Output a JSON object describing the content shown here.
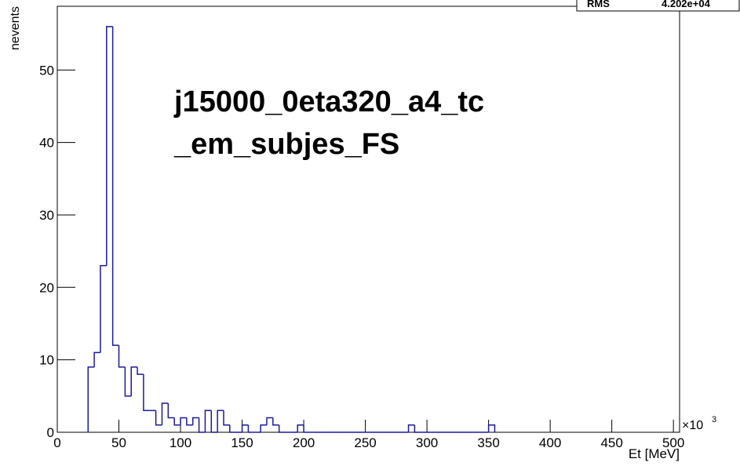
{
  "chart_data": {
    "type": "histogram",
    "annotations": [
      "j15000_0eta320_a4_tc",
      "_em_subjes_FS"
    ],
    "xlabel": "Et [MeV]",
    "ylabel": "nevents",
    "x_multiplier": {
      "base": "×10",
      "exponent": "3"
    },
    "stats": [
      {
        "name": "RMS",
        "text": "4.202e+04"
      }
    ],
    "color": "#1a1a9c",
    "bins": [
      25,
      30,
      35,
      40,
      45,
      50,
      55,
      60,
      65,
      70,
      75,
      80,
      85,
      90,
      95,
      100,
      105,
      110,
      115,
      120,
      125,
      130,
      135,
      140,
      145,
      150,
      155,
      160,
      165,
      170,
      175,
      180,
      185,
      190,
      195,
      200,
      205,
      210,
      215,
      220,
      225,
      230,
      235,
      240,
      245,
      250,
      255,
      260,
      265,
      270,
      275,
      280,
      285,
      290,
      295,
      300,
      305,
      310,
      315,
      320,
      325,
      330,
      335,
      340,
      345,
      350,
      355
    ],
    "counts": [
      9,
      11,
      23,
      56,
      12,
      9,
      5,
      9,
      8,
      3,
      3,
      1,
      4,
      2,
      1,
      2,
      1,
      2,
      0,
      3,
      0,
      3,
      1,
      0,
      0,
      1,
      0,
      0,
      1,
      2,
      1,
      0,
      0,
      0,
      1,
      0,
      0,
      0,
      0,
      0,
      0,
      0,
      0,
      0,
      0,
      0,
      0,
      0,
      0,
      0,
      0,
      0,
      1,
      0,
      0,
      0,
      0,
      0,
      0,
      0,
      0,
      0,
      0,
      0,
      0,
      1
    ],
    "xlim": [
      0,
      505
    ],
    "ylim": [
      0,
      58.8
    ],
    "xticks": [
      0,
      50,
      100,
      150,
      200,
      250,
      300,
      350,
      400,
      450,
      500
    ],
    "yticks": [
      0,
      10,
      20,
      30,
      40,
      50
    ]
  }
}
